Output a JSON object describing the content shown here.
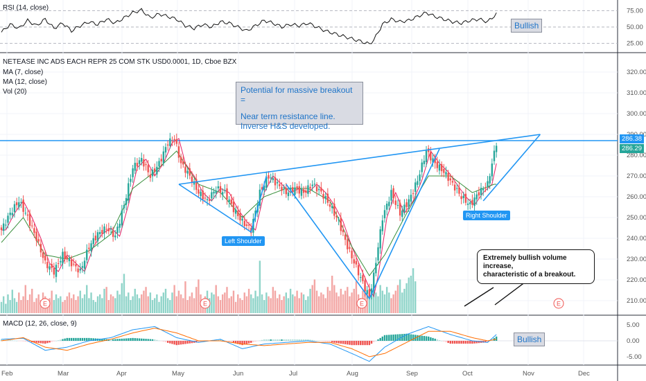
{
  "header": {
    "symbol_line": "NETEASE INC ADS EACH REPR 25 COM STK USD0.0001, 1D, Cboe BZX",
    "indicators": [
      "MA (7, close)",
      "MA (12, close)",
      "Vol (20)"
    ]
  },
  "rsi_panel": {
    "label": "RSI (14, close)",
    "ticks": [
      "75.00",
      "50.00",
      "25.00"
    ],
    "callout": "Bullish"
  },
  "macd_panel": {
    "label": "MACD (12, 26, close, 9)",
    "ticks": [
      "5.00",
      "0.00",
      "-5.00"
    ],
    "callout": "Bullish"
  },
  "annotations": {
    "breakout_title": "Potential for massive breakout =",
    "breakout_line1": "Near term resistance line.",
    "breakout_line2": "Inverse H&S developed.",
    "left_shoulder": "Left Shoulder",
    "right_shoulder": "Right Shoulder",
    "volume_note_line1": "Extremely bullish volume increase,",
    "volume_note_line2": "characteristic of a breakout.",
    "earnings_marker": "E"
  },
  "price_labels": {
    "last_price": "286.38",
    "second_price": "286.29"
  },
  "colors": {
    "up": "#26a69a",
    "down": "#ef5350",
    "trendline": "#2196f3",
    "ma7": "#e91e63",
    "ma12": "#388e3c",
    "macd": "#2196f3",
    "signal": "#ff6d00"
  },
  "chart_data": {
    "type": "candlestick",
    "x_ticks": [
      "Feb",
      "Mar",
      "Apr",
      "May",
      "Jun",
      "Jul",
      "Aug",
      "Sep",
      "Oct",
      "Nov",
      "Dec"
    ],
    "y_ticks": [
      320,
      310,
      300,
      290,
      280,
      270,
      260,
      250,
      240,
      230,
      220,
      210
    ],
    "ylim": [
      203,
      328
    ],
    "close_path": [
      [
        0,
        244
      ],
      [
        4,
        252
      ],
      [
        8,
        258
      ],
      [
        12,
        250
      ],
      [
        16,
        240
      ],
      [
        20,
        228
      ],
      [
        24,
        224
      ],
      [
        28,
        232
      ],
      [
        32,
        228
      ],
      [
        36,
        224
      ],
      [
        40,
        236
      ],
      [
        44,
        242
      ],
      [
        48,
        245
      ],
      [
        52,
        241
      ],
      [
        56,
        256
      ],
      [
        60,
        274
      ],
      [
        64,
        278
      ],
      [
        68,
        270
      ],
      [
        72,
        276
      ],
      [
        76,
        286
      ],
      [
        79,
        288
      ],
      [
        82,
        276
      ],
      [
        86,
        270
      ],
      [
        90,
        262
      ],
      [
        94,
        258
      ],
      [
        98,
        264
      ],
      [
        102,
        262
      ],
      [
        106,
        254
      ],
      [
        110,
        248
      ],
      [
        114,
        244
      ],
      [
        118,
        262
      ],
      [
        122,
        270
      ],
      [
        126,
        266
      ],
      [
        130,
        262
      ],
      [
        134,
        264
      ],
      [
        138,
        262
      ],
      [
        142,
        266
      ],
      [
        146,
        262
      ],
      [
        150,
        256
      ],
      [
        154,
        248
      ],
      [
        158,
        236
      ],
      [
        162,
        226
      ],
      [
        166,
        216
      ],
      [
        168,
        212
      ],
      [
        170,
        222
      ],
      [
        174,
        250
      ],
      [
        178,
        262
      ],
      [
        182,
        252
      ],
      [
        186,
        258
      ],
      [
        190,
        268
      ],
      [
        194,
        282
      ],
      [
        198,
        276
      ],
      [
        202,
        272
      ],
      [
        206,
        266
      ],
      [
        210,
        260
      ],
      [
        214,
        256
      ],
      [
        218,
        262
      ],
      [
        222,
        266
      ],
      [
        226,
        286
      ]
    ],
    "ma_slow_path": [
      [
        0,
        238
      ],
      [
        10,
        250
      ],
      [
        20,
        232
      ],
      [
        30,
        230
      ],
      [
        40,
        234
      ],
      [
        50,
        242
      ],
      [
        60,
        264
      ],
      [
        70,
        272
      ],
      [
        80,
        282
      ],
      [
        90,
        266
      ],
      [
        100,
        262
      ],
      [
        110,
        250
      ],
      [
        120,
        260
      ],
      [
        130,
        264
      ],
      [
        140,
        264
      ],
      [
        150,
        258
      ],
      [
        160,
        236
      ],
      [
        168,
        222
      ],
      [
        175,
        232
      ],
      [
        185,
        252
      ],
      [
        195,
        270
      ],
      [
        205,
        270
      ],
      [
        215,
        262
      ],
      [
        225,
        266
      ]
    ],
    "resistance_level": 287,
    "trendlines": {
      "neckline": [
        [
          81,
          266
        ],
        [
          246,
          290
        ]
      ],
      "left_shoulder_lines": [
        [
          81,
          266
        ],
        [
          114,
          243
        ],
        [
          121,
          270
        ]
      ],
      "head_lines": [
        [
          130,
          266
        ],
        [
          168,
          211
        ],
        [
          200,
          283
        ]
      ],
      "right_shoulder_lines": [
        [
          220,
          258
        ],
        [
          246,
          290
        ]
      ]
    },
    "volume": [
      12,
      18,
      10,
      20,
      14,
      25,
      16,
      12,
      22,
      14,
      18,
      30,
      14,
      20,
      26,
      12,
      16,
      20,
      14,
      22,
      18,
      12,
      16,
      24,
      14,
      20,
      16,
      18,
      12,
      14,
      18,
      22,
      16,
      20,
      14,
      18,
      24,
      16,
      20,
      30,
      16,
      22,
      14,
      12,
      18,
      20,
      16,
      26,
      28,
      14,
      20,
      18,
      16,
      24,
      20,
      32,
      42,
      18,
      22,
      14,
      18,
      26,
      20,
      16,
      20,
      24,
      28,
      18,
      22,
      14,
      16,
      20,
      12,
      18,
      22,
      26,
      16,
      14,
      22,
      30,
      18,
      24,
      20,
      16,
      34,
      14,
      18,
      22,
      16,
      28,
      36,
      20,
      14,
      18,
      24,
      16,
      22,
      20,
      30,
      18,
      14,
      20,
      22,
      28,
      16,
      18,
      24,
      12,
      20,
      16,
      14,
      22,
      18,
      26,
      20,
      16,
      24,
      18,
      56,
      20,
      14,
      22,
      18,
      16,
      28,
      24,
      16,
      20,
      14,
      18,
      22,
      16,
      26,
      20,
      18,
      24,
      16,
      22,
      20,
      14,
      18,
      26,
      30,
      36,
      24,
      18,
      22,
      20,
      16,
      28,
      24,
      40,
      30,
      22,
      18,
      26,
      20,
      24,
      28,
      18,
      22,
      26,
      34,
      20,
      16,
      24,
      30,
      22,
      18,
      20,
      26,
      22,
      18,
      30,
      24,
      20,
      28,
      22,
      16,
      20,
      24,
      30,
      36,
      22,
      26,
      32,
      38,
      40,
      48,
      34
    ],
    "rsi_path": [
      [
        0,
        42
      ],
      [
        4,
        54
      ],
      [
        8,
        48
      ],
      [
        12,
        60
      ],
      [
        16,
        52
      ],
      [
        20,
        62
      ],
      [
        24,
        48
      ],
      [
        28,
        56
      ],
      [
        32,
        44
      ],
      [
        36,
        52
      ],
      [
        40,
        58
      ],
      [
        44,
        54
      ],
      [
        48,
        62
      ],
      [
        52,
        56
      ],
      [
        56,
        64
      ],
      [
        60,
        72
      ],
      [
        64,
        76
      ],
      [
        68,
        64
      ],
      [
        72,
        70
      ],
      [
        76,
        66
      ],
      [
        80,
        62
      ],
      [
        84,
        52
      ],
      [
        88,
        48
      ],
      [
        92,
        54
      ],
      [
        96,
        50
      ],
      [
        100,
        58
      ],
      [
        104,
        56
      ],
      [
        108,
        50
      ],
      [
        112,
        44
      ],
      [
        116,
        52
      ],
      [
        120,
        60
      ],
      [
        124,
        56
      ],
      [
        128,
        50
      ],
      [
        132,
        54
      ],
      [
        136,
        52
      ],
      [
        140,
        56
      ],
      [
        144,
        50
      ],
      [
        148,
        44
      ],
      [
        152,
        40
      ],
      [
        156,
        36
      ],
      [
        160,
        32
      ],
      [
        164,
        28
      ],
      [
        168,
        24
      ],
      [
        170,
        30
      ],
      [
        174,
        54
      ],
      [
        178,
        62
      ],
      [
        182,
        58
      ],
      [
        186,
        60
      ],
      [
        190,
        66
      ],
      [
        194,
        72
      ],
      [
        198,
        66
      ],
      [
        202,
        62
      ],
      [
        206,
        58
      ],
      [
        210,
        56
      ],
      [
        214,
        60
      ],
      [
        218,
        62
      ],
      [
        222,
        58
      ],
      [
        226,
        70
      ]
    ],
    "macd_path": [
      [
        0,
        0.5
      ],
      [
        10,
        0.8
      ],
      [
        20,
        -3
      ],
      [
        30,
        -2
      ],
      [
        40,
        0
      ],
      [
        50,
        1
      ],
      [
        60,
        3.5
      ],
      [
        70,
        4.5
      ],
      [
        80,
        1
      ],
      [
        90,
        -0.5
      ],
      [
        100,
        0.5
      ],
      [
        110,
        -2.5
      ],
      [
        120,
        -1
      ],
      [
        130,
        -0.5
      ],
      [
        140,
        0
      ],
      [
        150,
        -1
      ],
      [
        160,
        -4
      ],
      [
        168,
        -6.5
      ],
      [
        175,
        -2
      ],
      [
        185,
        2
      ],
      [
        195,
        4.5
      ],
      [
        205,
        2
      ],
      [
        215,
        0
      ],
      [
        222,
        -0.5
      ],
      [
        226,
        2
      ]
    ],
    "signal_path": [
      [
        0,
        0
      ],
      [
        10,
        1
      ],
      [
        20,
        -2
      ],
      [
        30,
        -3
      ],
      [
        40,
        -1
      ],
      [
        50,
        0.5
      ],
      [
        60,
        2.5
      ],
      [
        70,
        4
      ],
      [
        80,
        2.5
      ],
      [
        90,
        0
      ],
      [
        100,
        0
      ],
      [
        110,
        -1
      ],
      [
        120,
        -1.5
      ],
      [
        130,
        -1
      ],
      [
        140,
        -0.5
      ],
      [
        150,
        -0.5
      ],
      [
        160,
        -2.5
      ],
      [
        168,
        -5
      ],
      [
        175,
        -4
      ],
      [
        185,
        -0.5
      ],
      [
        195,
        3
      ],
      [
        205,
        3
      ],
      [
        215,
        1
      ],
      [
        222,
        0
      ],
      [
        226,
        0.5
      ]
    ]
  }
}
